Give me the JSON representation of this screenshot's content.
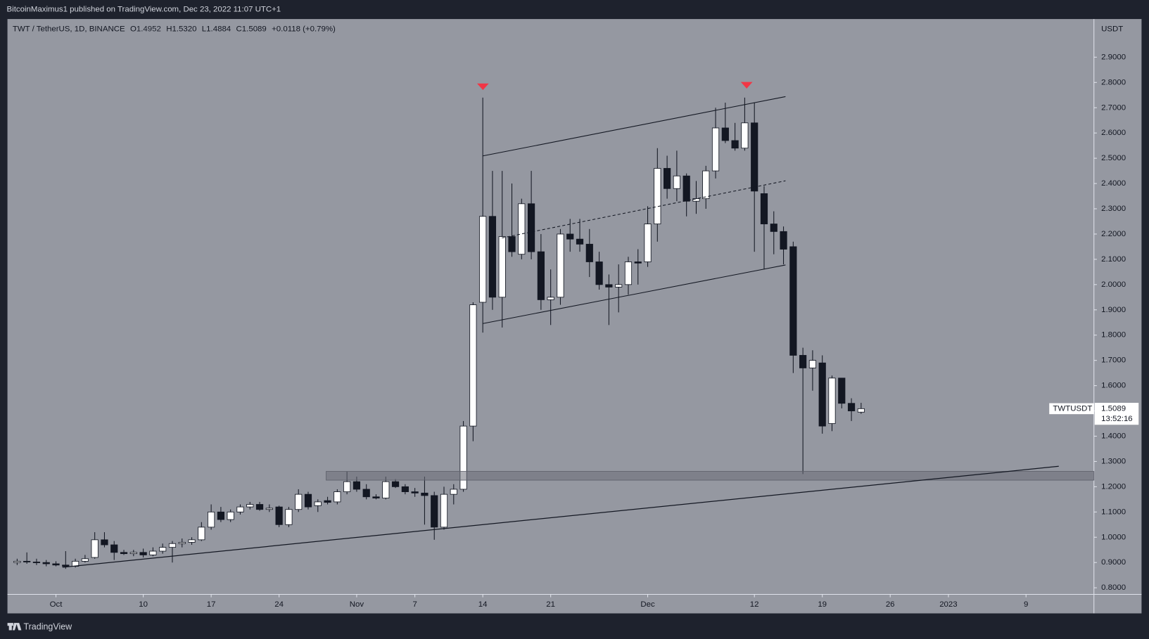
{
  "header": {
    "published": "BitcoinMaximus1 published on TradingView.com, Dec 23, 2022 11:07 UTC+1"
  },
  "legend": {
    "symbol": "TWT / TetherUS, 1D, BINANCE",
    "ohlc": [
      {
        "key": "O",
        "value": "1.4952"
      },
      {
        "key": "H",
        "value": "1.5320"
      },
      {
        "key": "L",
        "value": "1.4884"
      },
      {
        "key": "C",
        "value": "1.5089"
      }
    ],
    "change": "+0.0118 (+0.79%)"
  },
  "price_label": {
    "symbol": "TWTUSDT",
    "price": "1.5089",
    "countdown": "13:52:16"
  },
  "footer": {
    "brand": "TradingView"
  },
  "chart_data": {
    "type": "candlestick",
    "y_axis_label": "USDT",
    "x": [
      "2022-09-27",
      "2022-09-28",
      "2022-09-29",
      "2022-09-30",
      "2022-10-01",
      "2022-10-02",
      "2022-10-03",
      "2022-10-04",
      "2022-10-05",
      "2022-10-06",
      "2022-10-07",
      "2022-10-08",
      "2022-10-09",
      "2022-10-10",
      "2022-10-11",
      "2022-10-12",
      "2022-10-13",
      "2022-10-14",
      "2022-10-15",
      "2022-10-16",
      "2022-10-17",
      "2022-10-18",
      "2022-10-19",
      "2022-10-20",
      "2022-10-21",
      "2022-10-22",
      "2022-10-23",
      "2022-10-24",
      "2022-10-25",
      "2022-10-26",
      "2022-10-27",
      "2022-10-28",
      "2022-10-29",
      "2022-10-30",
      "2022-10-31",
      "2022-11-01",
      "2022-11-02",
      "2022-11-03",
      "2022-11-04",
      "2022-11-05",
      "2022-11-06",
      "2022-11-07",
      "2022-11-08",
      "2022-11-09",
      "2022-11-10",
      "2022-11-11",
      "2022-11-12",
      "2022-11-13",
      "2022-11-14",
      "2022-11-15",
      "2022-11-16",
      "2022-11-17",
      "2022-11-18",
      "2022-11-19",
      "2022-11-20",
      "2022-11-21",
      "2022-11-22",
      "2022-11-23",
      "2022-11-24",
      "2022-11-25",
      "2022-11-26",
      "2022-11-27",
      "2022-11-28",
      "2022-11-29",
      "2022-11-30",
      "2022-12-01",
      "2022-12-02",
      "2022-12-03",
      "2022-12-04",
      "2022-12-05",
      "2022-12-06",
      "2022-12-07",
      "2022-12-08",
      "2022-12-09",
      "2022-12-10",
      "2022-12-11",
      "2022-12-12",
      "2022-12-13",
      "2022-12-14",
      "2022-12-15",
      "2022-12-16",
      "2022-12-17",
      "2022-12-18",
      "2022-12-19",
      "2022-12-20",
      "2022-12-21",
      "2022-12-22",
      "2022-12-23"
    ],
    "open": [
      0.9,
      0.905,
      0.902,
      0.9,
      0.895,
      0.89,
      0.885,
      0.905,
      0.92,
      0.99,
      0.97,
      0.94,
      0.935,
      0.94,
      0.93,
      0.945,
      0.96,
      0.975,
      0.98,
      0.99,
      1.04,
      1.1,
      1.07,
      1.1,
      1.12,
      1.13,
      1.11,
      1.12,
      1.05,
      1.11,
      1.17,
      1.125,
      1.145,
      1.14,
      1.18,
      1.22,
      1.19,
      1.16,
      1.155,
      1.22,
      1.2,
      1.18,
      1.175,
      1.165,
      1.04,
      1.17,
      1.19,
      1.44,
      1.93,
      2.27,
      1.95,
      2.19,
      2.12,
      2.32,
      2.13,
      1.94,
      1.95,
      2.2,
      2.18,
      2.16,
      2.09,
      2.0,
      1.99,
      2.0,
      2.09,
      2.09,
      2.24,
      2.46,
      2.38,
      2.43,
      2.33,
      2.34,
      2.45,
      2.62,
      2.57,
      2.54,
      2.64,
      2.36,
      2.24,
      2.21,
      2.15,
      1.72,
      1.67,
      1.69,
      1.45,
      1.63,
      1.53,
      1.4952
    ],
    "high": [
      0.915,
      0.94,
      0.915,
      0.91,
      0.905,
      0.945,
      0.915,
      0.93,
      1.02,
      1.02,
      0.985,
      0.95,
      0.95,
      0.955,
      0.96,
      0.975,
      0.985,
      0.995,
      1.0,
      1.06,
      1.13,
      1.12,
      1.11,
      1.13,
      1.14,
      1.14,
      1.13,
      1.125,
      1.12,
      1.19,
      1.18,
      1.15,
      1.16,
      1.19,
      1.26,
      1.24,
      1.21,
      1.17,
      1.24,
      1.23,
      1.21,
      1.195,
      1.24,
      1.18,
      1.2,
      1.21,
      1.46,
      1.93,
      2.74,
      2.45,
      2.45,
      2.4,
      2.34,
      2.45,
      2.2,
      2.06,
      2.22,
      2.26,
      2.26,
      2.22,
      2.13,
      2.04,
      2.08,
      2.11,
      2.14,
      2.31,
      2.54,
      2.51,
      2.53,
      2.44,
      2.41,
      2.47,
      2.7,
      2.72,
      2.64,
      2.74,
      2.72,
      2.39,
      2.29,
      2.23,
      2.17,
      1.75,
      1.74,
      1.72,
      1.64,
      1.63,
      1.55,
      1.532
    ],
    "low": [
      0.89,
      0.895,
      0.89,
      0.885,
      0.885,
      0.875,
      0.88,
      0.9,
      0.915,
      0.96,
      0.91,
      0.93,
      0.925,
      0.92,
      0.925,
      0.935,
      0.9,
      0.96,
      0.97,
      0.985,
      1.03,
      1.06,
      1.06,
      1.09,
      1.11,
      1.105,
      1.1,
      1.04,
      1.04,
      1.1,
      1.11,
      1.1,
      1.13,
      1.13,
      1.17,
      1.18,
      1.15,
      1.15,
      1.15,
      1.195,
      1.17,
      1.16,
      1.05,
      0.99,
      1.03,
      1.13,
      1.18,
      1.38,
      1.81,
      1.9,
      1.83,
      2.11,
      2.1,
      2.1,
      1.9,
      1.84,
      1.92,
      2.13,
      2.13,
      2.03,
      1.98,
      1.84,
      1.89,
      1.96,
      2.0,
      2.07,
      2.17,
      2.34,
      2.33,
      2.27,
      2.28,
      2.3,
      2.42,
      2.56,
      2.53,
      2.53,
      2.13,
      2.06,
      2.12,
      2.08,
      1.65,
      1.25,
      1.58,
      1.41,
      1.42,
      1.51,
      1.46,
      1.4884
    ],
    "close": [
      0.905,
      0.902,
      0.9,
      0.895,
      0.89,
      0.885,
      0.905,
      0.915,
      0.99,
      0.97,
      0.94,
      0.935,
      0.94,
      0.93,
      0.945,
      0.96,
      0.975,
      0.98,
      0.99,
      1.04,
      1.1,
      1.07,
      1.1,
      1.12,
      1.13,
      1.11,
      1.115,
      1.05,
      1.11,
      1.17,
      1.12,
      1.14,
      1.138,
      1.18,
      1.22,
      1.19,
      1.16,
      1.155,
      1.22,
      1.2,
      1.18,
      1.175,
      1.165,
      1.04,
      1.17,
      1.19,
      1.44,
      1.92,
      2.27,
      1.95,
      2.19,
      2.13,
      2.32,
      2.13,
      1.94,
      1.95,
      2.2,
      2.18,
      2.16,
      2.09,
      2.0,
      1.99,
      2.0,
      2.09,
      2.085,
      2.24,
      2.46,
      2.38,
      2.43,
      2.33,
      2.34,
      2.45,
      2.62,
      2.57,
      2.54,
      2.64,
      2.37,
      2.24,
      2.21,
      2.14,
      1.72,
      1.67,
      1.7,
      1.44,
      1.63,
      1.53,
      1.5,
      1.5089
    ],
    "up_color": "#ffffff",
    "down_color": "#131722",
    "wick_color": "#131722",
    "xlim": [
      "2022-09-26",
      "2023-01-16"
    ],
    "xticks": [
      {
        "value": "2022-10-01",
        "label": "Oct"
      },
      {
        "value": "2022-10-10",
        "label": "10"
      },
      {
        "value": "2022-10-17",
        "label": "17"
      },
      {
        "value": "2022-10-24",
        "label": "24"
      },
      {
        "value": "2022-11-01",
        "label": "Nov"
      },
      {
        "value": "2022-11-07",
        "label": "7"
      },
      {
        "value": "2022-11-14",
        "label": "14"
      },
      {
        "value": "2022-11-21",
        "label": "21"
      },
      {
        "value": "2022-12-01",
        "label": "Dec"
      },
      {
        "value": "2022-12-12",
        "label": "12"
      },
      {
        "value": "2022-12-19",
        "label": "19"
      },
      {
        "value": "2022-12-26",
        "label": "26"
      },
      {
        "value": "2023-01-01",
        "label": "2023"
      },
      {
        "value": "2023-01-09",
        "label": "9"
      }
    ],
    "ylim": [
      0.774,
      3.051
    ],
    "yticks": [
      {
        "value": 0.8,
        "label": "0.8000"
      },
      {
        "value": 0.9,
        "label": "0.9000"
      },
      {
        "value": 1.0,
        "label": "1.0000"
      },
      {
        "value": 1.1,
        "label": "1.1000"
      },
      {
        "value": 1.2,
        "label": "1.2000"
      },
      {
        "value": 1.3,
        "label": "1.3000"
      },
      {
        "value": 1.4,
        "label": "1.4000"
      },
      {
        "value": 1.5,
        "label": "1.5000"
      },
      {
        "value": 1.6,
        "label": "1.6000"
      },
      {
        "value": 1.7,
        "label": "1.7000"
      },
      {
        "value": 1.8,
        "label": "1.8000"
      },
      {
        "value": 1.9,
        "label": "1.9000"
      },
      {
        "value": 2.0,
        "label": "2.0000"
      },
      {
        "value": 2.1,
        "label": "2.1000"
      },
      {
        "value": 2.2,
        "label": "2.2000"
      },
      {
        "value": 2.3,
        "label": "2.3000"
      },
      {
        "value": 2.4,
        "label": "2.4000"
      },
      {
        "value": 2.5,
        "label": "2.5000"
      },
      {
        "value": 2.6,
        "label": "2.6000"
      },
      {
        "value": 2.7,
        "label": "2.7000"
      },
      {
        "value": 2.8,
        "label": "2.8000"
      },
      {
        "value": 2.9,
        "label": "2.9000"
      }
    ],
    "grid": false
  }
}
